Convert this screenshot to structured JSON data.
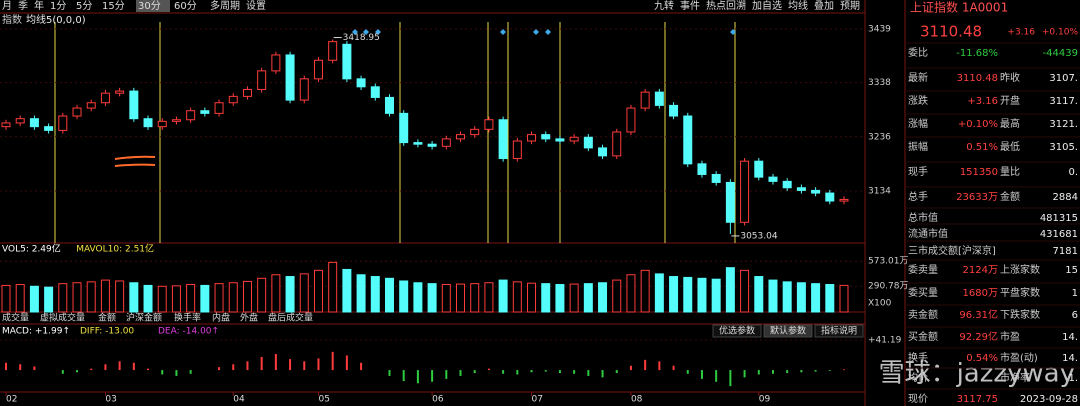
{
  "toolbar": {
    "periods": [
      "月",
      "季",
      "年",
      "1分",
      "5分",
      "15分",
      "30分",
      "60分",
      "多周期",
      "设置"
    ],
    "selected": 6,
    "tools": [
      "九转",
      "事件",
      "热点回溯",
      "加自选",
      "均线",
      "叠加",
      "预期"
    ]
  },
  "indicator_label": "指数",
  "ma_label": "均线5(0,0,0)",
  "chart_data": {
    "type": "candlestick",
    "colors": {
      "up": "#ff3c3c",
      "down": "#54fcfc"
    },
    "xlim": [
      0,
      59
    ],
    "xticks": [
      {
        "value": 0,
        "label": "02"
      },
      {
        "value": 7,
        "label": "03"
      },
      {
        "value": 16,
        "label": "04"
      },
      {
        "value": 22,
        "label": "05"
      },
      {
        "value": 30,
        "label": "06"
      },
      {
        "value": 37,
        "label": "07"
      },
      {
        "value": 44,
        "label": "08"
      },
      {
        "value": 53,
        "label": "09"
      }
    ],
    "ylim": [
      3036,
      3452
    ],
    "yticks": [
      3134,
      3236,
      3338,
      3439
    ],
    "open": [
      3255,
      3262,
      3270,
      3255,
      3248,
      3275,
      3290,
      3300,
      3318,
      3322,
      3270,
      3255,
      3265,
      3268,
      3285,
      3280,
      3300,
      3312,
      3325,
      3360,
      3390,
      3305,
      3345,
      3380,
      3410,
      3345,
      3330,
      3310,
      3280,
      3225,
      3222,
      3218,
      3232,
      3240,
      3250,
      3268,
      3195,
      3228,
      3240,
      3232,
      3228,
      3235,
      3215,
      3200,
      3245,
      3290,
      3320,
      3295,
      3275,
      3185,
      3165,
      3150,
      3075,
      3190,
      3160,
      3152,
      3140,
      3135,
      3130,
      3115
    ],
    "high": [
      3268,
      3276,
      3276,
      3261,
      3281,
      3296,
      3306,
      3324,
      3328,
      3328,
      3276,
      3271,
      3274,
      3291,
      3291,
      3306,
      3318,
      3331,
      3366,
      3396,
      3396,
      3351,
      3386,
      3418.95,
      3416,
      3351,
      3336,
      3316,
      3286,
      3231,
      3228,
      3238,
      3246,
      3256,
      3274,
      3274,
      3234,
      3246,
      3246,
      3238,
      3241,
      3241,
      3221,
      3251,
      3296,
      3326,
      3326,
      3301,
      3281,
      3191,
      3171,
      3156,
      3196,
      3196,
      3166,
      3158,
      3146,
      3141,
      3136,
      3124
    ],
    "low": [
      3249,
      3256,
      3249,
      3242,
      3242,
      3269,
      3284,
      3294,
      3312,
      3264,
      3249,
      3249,
      3259,
      3262,
      3274,
      3274,
      3294,
      3306,
      3319,
      3354,
      3299,
      3299,
      3339,
      3374,
      3339,
      3324,
      3304,
      3274,
      3219,
      3216,
      3212,
      3212,
      3226,
      3234,
      3244,
      3189,
      3189,
      3222,
      3226,
      3222,
      3222,
      3209,
      3194,
      3194,
      3239,
      3284,
      3289,
      3269,
      3179,
      3159,
      3144,
      3053.04,
      3069,
      3154,
      3146,
      3134,
      3129,
      3124,
      3109,
      3109
    ],
    "close": [
      3262,
      3270,
      3255,
      3248,
      3275,
      3290,
      3300,
      3318,
      3322,
      3270,
      3255,
      3265,
      3268,
      3285,
      3280,
      3300,
      3312,
      3325,
      3360,
      3390,
      3305,
      3345,
      3380,
      3415,
      3345,
      3330,
      3310,
      3280,
      3225,
      3222,
      3218,
      3232,
      3240,
      3250,
      3268,
      3195,
      3228,
      3240,
      3232,
      3228,
      3235,
      3215,
      3200,
      3245,
      3290,
      3320,
      3295,
      3275,
      3185,
      3165,
      3150,
      3075,
      3190,
      3160,
      3152,
      3140,
      3135,
      3130,
      3115,
      3118
    ],
    "volume": {
      "legend": [
        "VOL5: 2.49亿",
        "MAVOL10: 2.51亿"
      ],
      "ylim": [
        0,
        643
      ],
      "yticks": [
        {
          "value": 573.01,
          "label": "573.01万"
        },
        {
          "value": 290.78,
          "label": "290.78万"
        }
      ],
      "unit": "X100",
      "values": [
        300,
        310,
        290,
        280,
        320,
        330,
        340,
        360,
        350,
        330,
        300,
        290,
        295,
        310,
        300,
        320,
        330,
        345,
        380,
        420,
        400,
        430,
        470,
        560,
        480,
        420,
        400,
        380,
        350,
        330,
        320,
        310,
        315,
        320,
        330,
        360,
        340,
        325,
        320,
        310,
        315,
        320,
        330,
        360,
        420,
        470,
        430,
        400,
        390,
        380,
        370,
        500,
        470,
        400,
        360,
        340,
        330,
        320,
        310,
        300
      ]
    },
    "tabs": [
      "成交量",
      "虚拟成交量",
      "金额",
      "沪深金额",
      "换手率",
      "内盘",
      "外盘",
      "盘后成交量"
    ],
    "macd": {
      "legend": [
        "MACD: +1.99↑",
        "DIFF: -13.00",
        "DEA: -14.00↑"
      ],
      "buttons": [
        "优选参数",
        "默认参数",
        "指标说明"
      ],
      "ylim": [
        -30,
        41.19
      ],
      "yticks": [
        {
          "value": 41.19,
          "label": "+41.19"
        }
      ],
      "values": [
        10,
        8,
        5,
        0,
        -5,
        -3,
        2,
        8,
        12,
        10,
        2,
        -6,
        -8,
        -5,
        0,
        4,
        8,
        12,
        18,
        22,
        15,
        12,
        16,
        25,
        20,
        10,
        0,
        -8,
        -15,
        -18,
        -16,
        -12,
        -8,
        -4,
        2,
        -5,
        -6,
        -3,
        -2,
        -4,
        -5,
        -8,
        -10,
        -4,
        6,
        14,
        12,
        6,
        -5,
        -12,
        -16,
        -22,
        -10,
        -6,
        -5,
        -4,
        -3,
        -2,
        -1,
        1
      ]
    }
  },
  "quote": {
    "title": "上证指数 1A0001",
    "price": "3110.48",
    "change": "+3.16",
    "change_pct": "+0.10%",
    "rows": [
      {
        "label": "委比",
        "value": "-11.68%",
        "value2": "-44439"
      },
      {
        "label": "最新",
        "value": "3110.48",
        "label2": "昨收",
        "value2": "3107."
      },
      {
        "label": "涨跌",
        "value": "+3.16",
        "label2": "开盘",
        "value2": "3117."
      },
      {
        "label": "涨幅",
        "value": "+0.10%",
        "label2": "最高",
        "value2": "3121."
      },
      {
        "label": "振幅",
        "value": "0.51%",
        "label2": "最低",
        "value2": "3105."
      },
      {
        "label": "现手",
        "value": "151350",
        "label2": "量比",
        "value2": "0."
      },
      {
        "label": "总手",
        "value": "23633万",
        "label2": "金额",
        "value2": "2884"
      },
      {
        "label": "总市值",
        "value2": "481315"
      },
      {
        "label": "流通市值",
        "value2": "431681"
      },
      {
        "label": "三市成交额[沪深京]",
        "value2": "7181"
      },
      {
        "label": "委卖量",
        "value": "2124万",
        "label2": "上涨家数",
        "value2": "15"
      },
      {
        "label": "委买量",
        "value": "1680万",
        "label2": "平盘家数",
        "value2": "1"
      },
      {
        "label": "卖金额",
        "value": "96.31亿",
        "label2": "下跌家数",
        "value2": "6"
      },
      {
        "label": "买金额",
        "value": "92.29亿",
        "label2": "市盈",
        "value2": "14."
      },
      {
        "label": "换手",
        "value": "0.54%",
        "label2": "市盈(动)",
        "value2": "14."
      },
      {
        "label": "均价",
        "label2": "市净率",
        "value2": "1."
      },
      {
        "label": "现价",
        "value": "3117.75",
        "value2": "2023-09-28"
      }
    ]
  },
  "watermark": "雪球：jazzyway"
}
